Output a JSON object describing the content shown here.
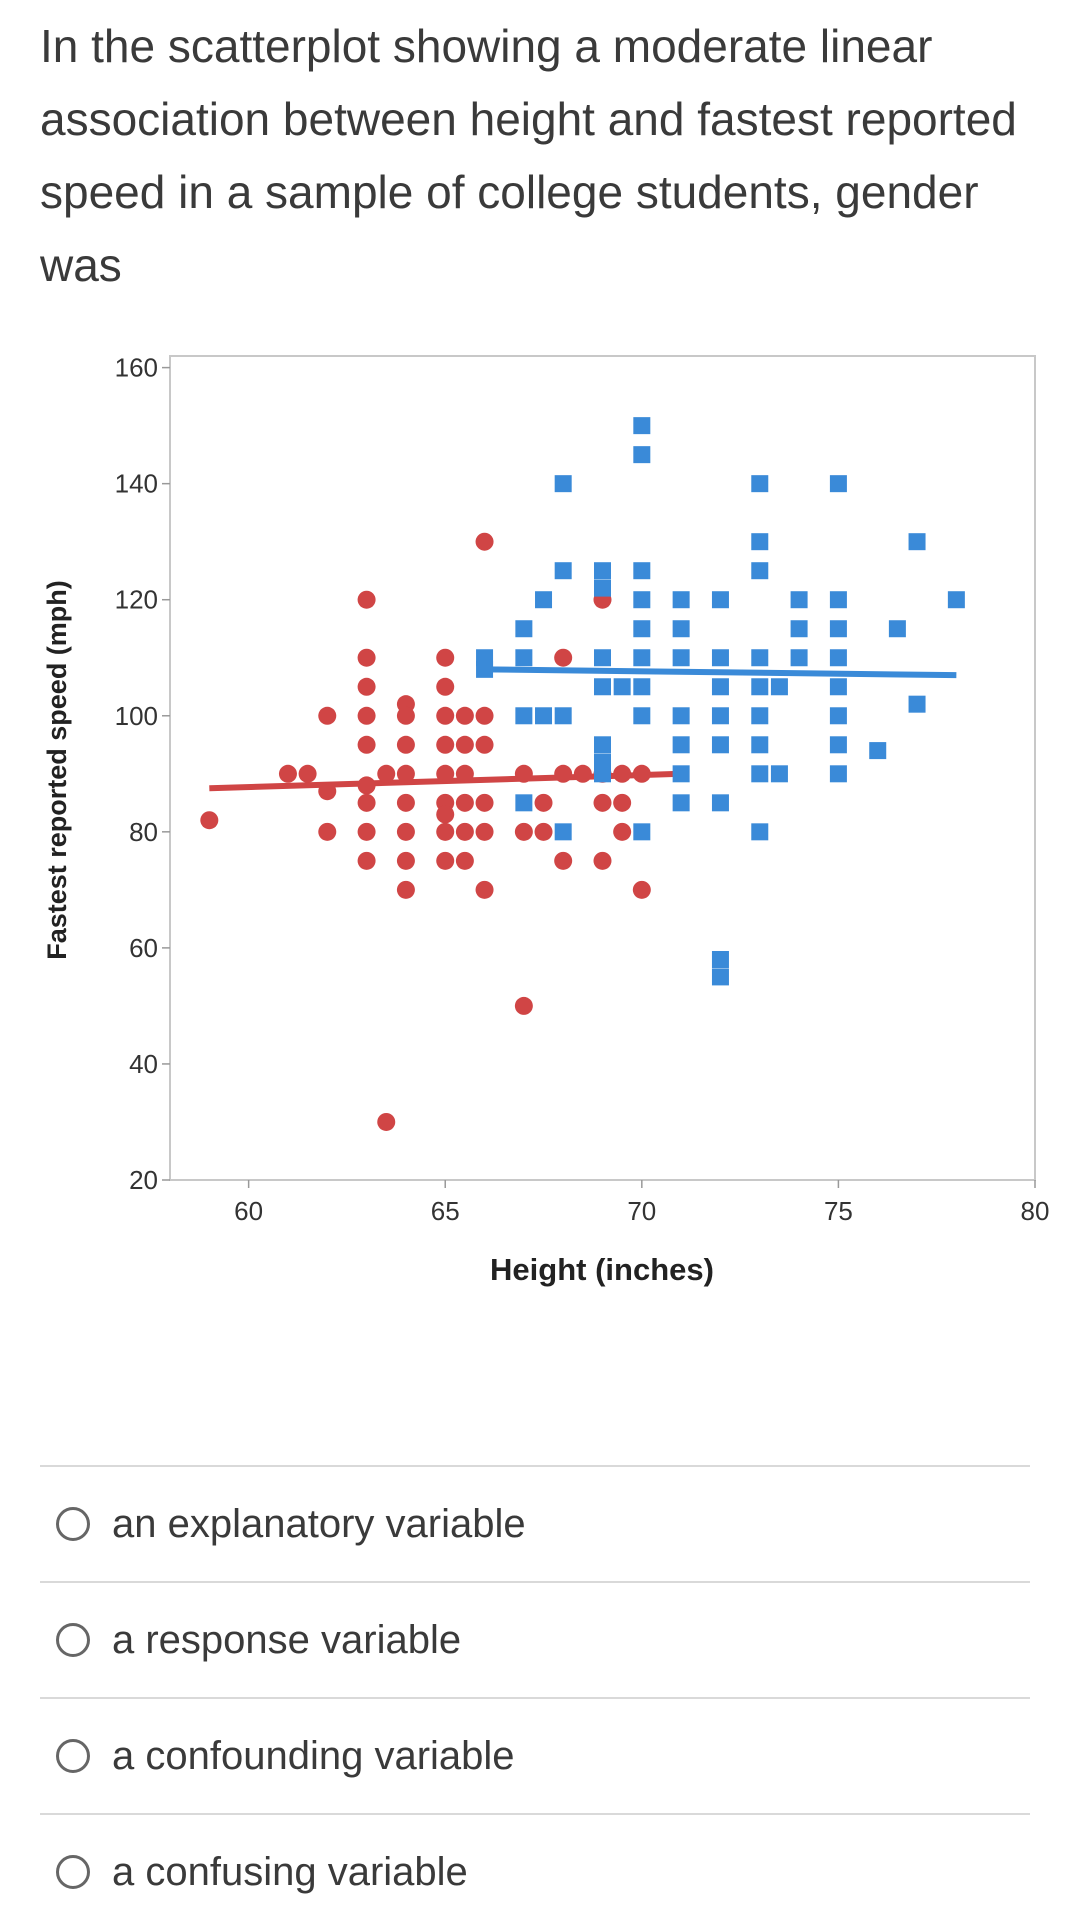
{
  "question": {
    "text": "In the scatterplot showing a moderate linear association between height and fastest reported speed in a sample of college students, gender was"
  },
  "options": [
    {
      "label": "an explanatory variable"
    },
    {
      "label": "a response variable"
    },
    {
      "label": "a confounding variable"
    },
    {
      "label": "a confusing variable"
    }
  ],
  "chart_data": {
    "type": "scatter",
    "xlabel": "Height (inches)",
    "ylabel": "Fastest reported speed (mph)",
    "xlim": [
      58,
      80
    ],
    "ylim": [
      20,
      162
    ],
    "xticks": [
      60,
      65,
      70,
      75,
      80
    ],
    "yticks": [
      20,
      40,
      60,
      80,
      100,
      120,
      140,
      160
    ],
    "grid": false,
    "colors": {
      "circles": "#d04545",
      "squares": "#3a8ad8"
    },
    "series": [
      {
        "marker": "circle",
        "color": "#d04545",
        "fit_line": {
          "x": [
            59,
            71
          ],
          "y": [
            87.5,
            90
          ]
        },
        "points": [
          [
            59,
            82
          ],
          [
            61,
            90
          ],
          [
            61.5,
            90
          ],
          [
            62,
            100
          ],
          [
            62,
            87
          ],
          [
            62,
            80
          ],
          [
            63,
            120
          ],
          [
            63,
            110
          ],
          [
            63,
            105
          ],
          [
            63,
            100
          ],
          [
            63,
            95
          ],
          [
            63,
            88
          ],
          [
            63,
            85
          ],
          [
            63,
            80
          ],
          [
            63,
            75
          ],
          [
            63.5,
            90
          ],
          [
            63.5,
            30
          ],
          [
            64,
            102
          ],
          [
            64,
            100
          ],
          [
            64,
            95
          ],
          [
            64,
            90
          ],
          [
            64,
            85
          ],
          [
            64,
            80
          ],
          [
            64,
            75
          ],
          [
            64,
            70
          ],
          [
            65,
            110
          ],
          [
            65,
            105
          ],
          [
            65,
            100
          ],
          [
            65,
            95
          ],
          [
            65,
            90
          ],
          [
            65,
            85
          ],
          [
            65,
            83
          ],
          [
            65,
            80
          ],
          [
            65,
            75
          ],
          [
            65.5,
            100
          ],
          [
            65.5,
            95
          ],
          [
            65.5,
            90
          ],
          [
            65.5,
            85
          ],
          [
            65.5,
            80
          ],
          [
            65.5,
            75
          ],
          [
            66,
            130
          ],
          [
            66,
            100
          ],
          [
            66,
            95
          ],
          [
            66,
            85
          ],
          [
            66,
            80
          ],
          [
            66,
            70
          ],
          [
            67,
            90
          ],
          [
            67,
            80
          ],
          [
            67,
            50
          ],
          [
            67.5,
            85
          ],
          [
            67.5,
            80
          ],
          [
            68,
            110
          ],
          [
            68,
            90
          ],
          [
            68,
            75
          ],
          [
            68.5,
            90
          ],
          [
            69,
            120
          ],
          [
            69,
            90
          ],
          [
            69,
            85
          ],
          [
            69,
            75
          ],
          [
            69.5,
            90
          ],
          [
            69.5,
            85
          ],
          [
            69.5,
            80
          ],
          [
            70,
            90
          ],
          [
            70,
            70
          ]
        ]
      },
      {
        "marker": "square",
        "color": "#3a8ad8",
        "fit_line": {
          "x": [
            66,
            78
          ],
          "y": [
            108,
            107
          ]
        },
        "points": [
          [
            66,
            110
          ],
          [
            66,
            108
          ],
          [
            67,
            115
          ],
          [
            67,
            110
          ],
          [
            67,
            100
          ],
          [
            67,
            85
          ],
          [
            67.5,
            120
          ],
          [
            67.5,
            100
          ],
          [
            68,
            140
          ],
          [
            68,
            125
          ],
          [
            68,
            100
          ],
          [
            68,
            80
          ],
          [
            69,
            125
          ],
          [
            69,
            122
          ],
          [
            69,
            110
          ],
          [
            69,
            105
          ],
          [
            69,
            95
          ],
          [
            69,
            92
          ],
          [
            69,
            90
          ],
          [
            69.5,
            105
          ],
          [
            70,
            150
          ],
          [
            70,
            145
          ],
          [
            70,
            125
          ],
          [
            70,
            120
          ],
          [
            70,
            115
          ],
          [
            70,
            110
          ],
          [
            70,
            105
          ],
          [
            70,
            100
          ],
          [
            70,
            80
          ],
          [
            71,
            120
          ],
          [
            71,
            115
          ],
          [
            71,
            110
          ],
          [
            71,
            100
          ],
          [
            71,
            95
          ],
          [
            71,
            90
          ],
          [
            71,
            85
          ],
          [
            72,
            120
          ],
          [
            72,
            110
          ],
          [
            72,
            105
          ],
          [
            72,
            100
          ],
          [
            72,
            95
          ],
          [
            72,
            85
          ],
          [
            72,
            58
          ],
          [
            72,
            55
          ],
          [
            73,
            140
          ],
          [
            73,
            130
          ],
          [
            73,
            125
          ],
          [
            73,
            110
          ],
          [
            73,
            105
          ],
          [
            73,
            100
          ],
          [
            73,
            95
          ],
          [
            73,
            90
          ],
          [
            73,
            80
          ],
          [
            73.5,
            105
          ],
          [
            73.5,
            90
          ],
          [
            74,
            120
          ],
          [
            74,
            115
          ],
          [
            74,
            110
          ],
          [
            75,
            140
          ],
          [
            75,
            120
          ],
          [
            75,
            115
          ],
          [
            75,
            110
          ],
          [
            75,
            105
          ],
          [
            75,
            100
          ],
          [
            75,
            95
          ],
          [
            75,
            90
          ],
          [
            76,
            94
          ],
          [
            76.5,
            115
          ],
          [
            77,
            130
          ],
          [
            77,
            102
          ],
          [
            78,
            120
          ]
        ]
      }
    ]
  }
}
